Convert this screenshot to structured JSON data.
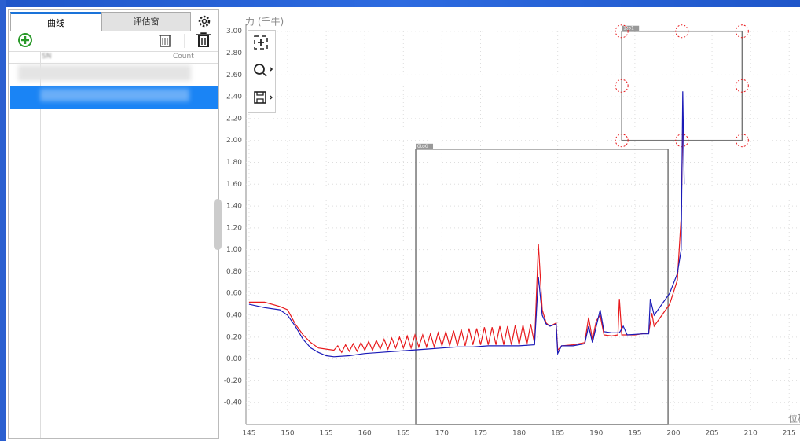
{
  "panel": {
    "tabs": [
      "曲线",
      "评估窗"
    ],
    "columns": [
      "SN",
      "Count"
    ]
  },
  "chart_data": {
    "type": "line",
    "y_label": "力 (千牛)",
    "x_label": "位移",
    "xlim": [
      144.6,
      216.4
    ],
    "ylim": [
      -0.6,
      3.07
    ],
    "grid": true,
    "xticks": [
      145,
      150,
      155,
      160,
      165,
      170,
      175,
      180,
      185,
      190,
      195,
      200,
      205,
      210,
      215
    ],
    "yticks": [
      {
        "value": 3,
        "label": "3.00"
      },
      {
        "value": 2.8,
        "label": "2.80"
      },
      {
        "value": 2.6,
        "label": "2.60"
      },
      {
        "value": 2.4,
        "label": "2.40"
      },
      {
        "value": 2.2,
        "label": "2.20"
      },
      {
        "value": 2,
        "label": "2.00"
      },
      {
        "value": 1.8,
        "label": "1.80"
      },
      {
        "value": 1.6,
        "label": "1.60"
      },
      {
        "value": 1.4,
        "label": "1.40"
      },
      {
        "value": 1.2,
        "label": "1.20"
      },
      {
        "value": 1,
        "label": "1.00"
      },
      {
        "value": 0.8,
        "label": "0.80"
      },
      {
        "value": 0.6,
        "label": "0.60"
      },
      {
        "value": 0.4,
        "label": "0.40"
      },
      {
        "value": 0.2,
        "label": "0.20"
      },
      {
        "value": 0,
        "label": "0.00"
      },
      {
        "value": -0.2,
        "label": "-0.20"
      },
      {
        "value": -0.4,
        "label": "-0.40"
      }
    ],
    "windows": [
      {
        "label": "0to0",
        "xlim": [
          166.6,
          199.3
        ],
        "ylim": [
          -0.6,
          1.92
        ]
      },
      {
        "label": "1to1",
        "xlim": [
          193.3,
          208.9
        ],
        "ylim": [
          2.0,
          3.0
        ]
      }
    ],
    "series": [
      {
        "color": "#e8191c",
        "x": [
          145,
          147,
          149,
          150,
          151,
          152,
          153,
          154,
          155,
          156,
          156.5,
          157,
          157.5,
          158,
          158.5,
          159,
          159.5,
          160,
          160.5,
          161,
          161.5,
          162,
          162.5,
          163,
          163.5,
          164,
          164.5,
          165,
          165.5,
          166,
          166.5,
          167,
          167.5,
          168,
          168.5,
          169,
          169.5,
          170,
          170.5,
          171,
          171.5,
          172,
          172.5,
          173,
          173.5,
          174,
          174.5,
          175,
          175.5,
          176,
          176.5,
          177,
          177.5,
          178,
          178.5,
          179,
          179.5,
          180,
          180.5,
          181,
          181.5,
          182,
          182.5,
          183,
          183.5,
          184,
          184.8,
          185,
          185.5,
          187,
          188.5,
          189,
          189.5,
          190,
          190.5,
          191,
          192,
          192.8,
          193,
          193.3,
          195,
          196.8,
          197.2,
          197.5,
          198.5,
          199.5,
          200.5,
          201,
          201.2
        ],
        "values": [
          0.52,
          0.52,
          0.48,
          0.45,
          0.32,
          0.22,
          0.15,
          0.1,
          0.09,
          0.08,
          0.12,
          0.06,
          0.13,
          0.07,
          0.14,
          0.07,
          0.15,
          0.08,
          0.16,
          0.08,
          0.17,
          0.09,
          0.18,
          0.09,
          0.19,
          0.1,
          0.2,
          0.1,
          0.21,
          0.1,
          0.22,
          0.11,
          0.22,
          0.11,
          0.23,
          0.11,
          0.24,
          0.12,
          0.25,
          0.12,
          0.26,
          0.12,
          0.27,
          0.12,
          0.28,
          0.13,
          0.28,
          0.13,
          0.29,
          0.13,
          0.29,
          0.13,
          0.3,
          0.13,
          0.3,
          0.13,
          0.31,
          0.13,
          0.31,
          0.13,
          0.32,
          0.14,
          1.05,
          0.45,
          0.33,
          0.3,
          0.33,
          0.08,
          0.12,
          0.13,
          0.15,
          0.38,
          0.18,
          0.35,
          0.4,
          0.22,
          0.21,
          0.22,
          0.55,
          0.22,
          0.22,
          0.24,
          0.42,
          0.3,
          0.4,
          0.5,
          0.72,
          1.3,
          2.1
        ]
      },
      {
        "color": "#1a1ab8",
        "x": [
          145,
          147,
          149,
          150,
          151,
          152,
          153,
          154,
          155,
          156,
          158,
          160,
          162,
          164,
          166,
          168,
          170,
          172,
          174,
          176,
          178,
          180,
          182,
          182.5,
          183,
          183.5,
          184,
          184.8,
          185,
          185.5,
          187,
          188.5,
          189,
          189.5,
          190,
          190.5,
          191,
          192,
          193,
          193.5,
          194,
          196,
          196.8,
          197,
          197.5,
          198.5,
          199.5,
          200.5,
          201,
          201.2,
          201.4
        ],
        "values": [
          0.5,
          0.47,
          0.45,
          0.4,
          0.3,
          0.18,
          0.1,
          0.06,
          0.03,
          0.02,
          0.03,
          0.05,
          0.06,
          0.07,
          0.08,
          0.09,
          0.1,
          0.11,
          0.11,
          0.12,
          0.12,
          0.12,
          0.13,
          0.75,
          0.4,
          0.32,
          0.3,
          0.32,
          0.05,
          0.12,
          0.12,
          0.14,
          0.3,
          0.15,
          0.3,
          0.45,
          0.25,
          0.24,
          0.24,
          0.3,
          0.22,
          0.23,
          0.23,
          0.55,
          0.4,
          0.5,
          0.6,
          0.78,
          1.0,
          2.45,
          1.6
        ]
      }
    ]
  }
}
